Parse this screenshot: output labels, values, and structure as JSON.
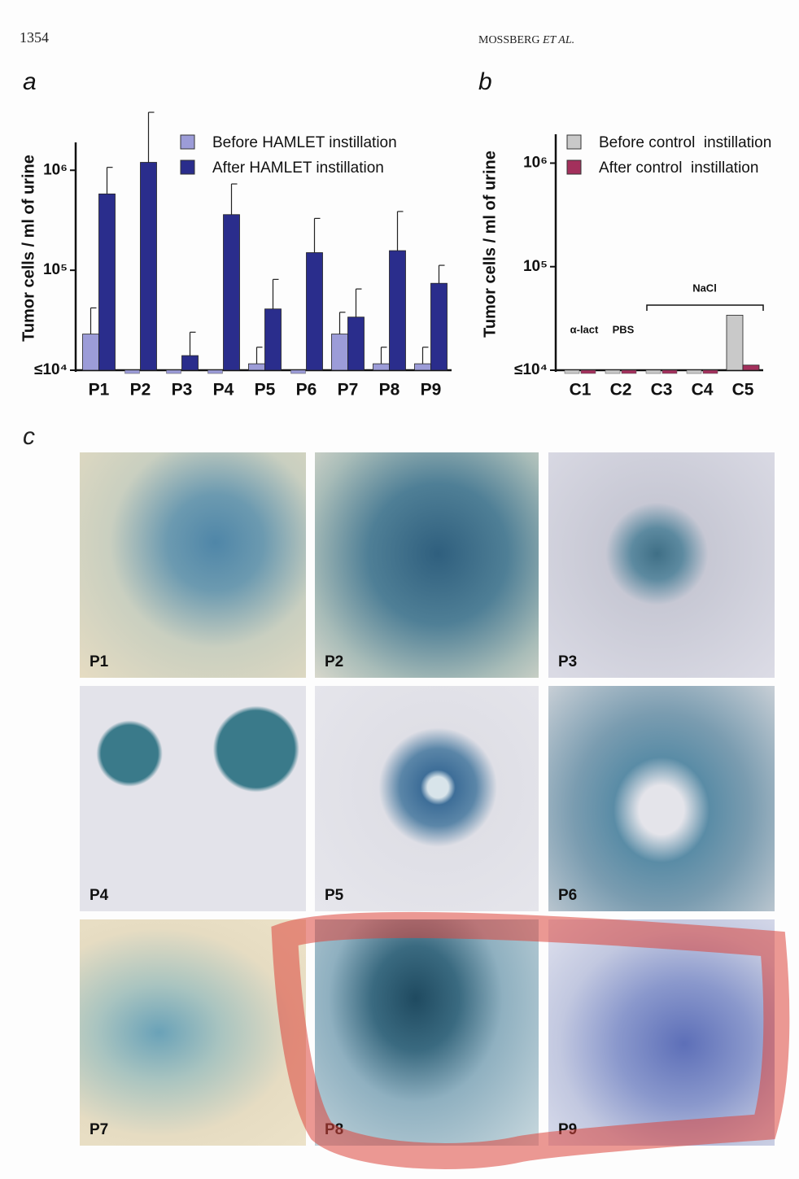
{
  "header": {
    "page_number": "1354",
    "authors": "MOSSBERG",
    "authors_suffix": "ET AL."
  },
  "chart_data": [
    {
      "type": "bar",
      "panel": "a",
      "y_label": "Tumor cells / ml of urine",
      "categories": [
        "P1",
        "P2",
        "P3",
        "P4",
        "P5",
        "P6",
        "P7",
        "P8",
        "P9"
      ],
      "series": [
        {
          "name": "Before HAMLET instillation",
          "color": "#9c9cd8",
          "values": [
            23000,
            10000,
            10000,
            10000,
            11600,
            10000,
            23000,
            11600,
            11600
          ],
          "errors": [
            19000,
            null,
            null,
            null,
            5400,
            null,
            15000,
            5400,
            5400
          ]
        },
        {
          "name": "After HAMLET instillation",
          "color": "#2a2d8c",
          "values": [
            580000,
            1200000,
            14000,
            360000,
            41000,
            150000,
            34000,
            157000,
            74000
          ],
          "errors": [
            490000,
            2600000,
            10000,
            370000,
            40000,
            180000,
            31000,
            230000,
            38000
          ]
        }
      ],
      "ylim": [
        10000,
        1900000
      ],
      "log_scale": true,
      "yticks": [
        {
          "value": 10000,
          "label": "≤10⁴"
        },
        {
          "value": 100000,
          "label": "10⁵"
        },
        {
          "value": 1000000,
          "label": "10⁶"
        }
      ],
      "legend": "upper right"
    },
    {
      "type": "bar",
      "panel": "b",
      "y_label": "Tumor cells / ml of urine",
      "categories": [
        "C1",
        "C2",
        "C3",
        "C4",
        "C5"
      ],
      "series": [
        {
          "name": "Before control  instillation",
          "color": "#c9c9c9",
          "values": [
            10000,
            10000,
            10000,
            10000,
            34000
          ]
        },
        {
          "name": "After control  instillation",
          "color": "#a3305c",
          "values": [
            10000,
            10000,
            10000,
            10000,
            11200
          ]
        }
      ],
      "annotations": [
        "α-lact",
        "PBS",
        "NaCl"
      ],
      "ylim": [
        10000,
        1900000
      ],
      "log_scale": true,
      "yticks": [
        {
          "value": 10000,
          "label": "≤10⁴"
        },
        {
          "value": 100000,
          "label": "10⁵"
        },
        {
          "value": 1000000,
          "label": "10⁶"
        }
      ],
      "legend": "upper right"
    }
  ],
  "panel_c": {
    "label": "c",
    "images": [
      {
        "label": "P1"
      },
      {
        "label": "P2"
      },
      {
        "label": "P3"
      },
      {
        "label": "P4"
      },
      {
        "label": "P5"
      },
      {
        "label": "P6"
      },
      {
        "label": "P7"
      },
      {
        "label": "P8"
      },
      {
        "label": "P9"
      }
    ]
  }
}
